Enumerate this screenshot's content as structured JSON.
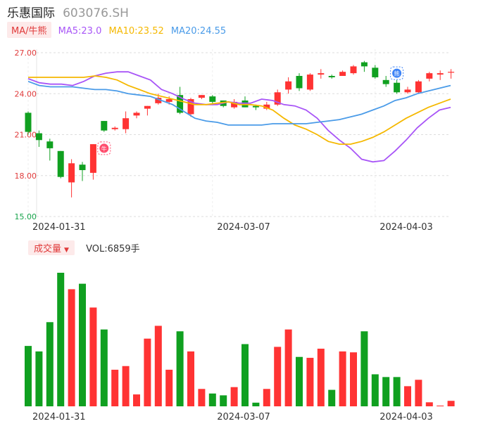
{
  "header": {
    "name": "乐惠国际",
    "code": "603076.SH"
  },
  "ma": {
    "tag": "MA/牛熊",
    "items": [
      {
        "label": "MA5:23.0",
        "color": "#a855f7"
      },
      {
        "label": "MA10:23.52",
        "color": "#f5b800"
      },
      {
        "label": "MA20:24.55",
        "color": "#4a9be8"
      }
    ]
  },
  "volume": {
    "tag": "成交量",
    "label": "VOL:6859手"
  },
  "colors": {
    "up": "#ff3333",
    "down": "#10a020",
    "ma5": "#a855f7",
    "ma10": "#f5b800",
    "ma20": "#4a9be8"
  },
  "icons": {
    "bull": "牛",
    "bear": "熊"
  },
  "chart_data": {
    "type": "candlestick",
    "ylim": [
      15,
      27
    ],
    "y_ticks": [
      "27.00",
      "24.00",
      "21.00",
      "18.00",
      "15.00"
    ],
    "x_tick_labels": [
      {
        "index": 0,
        "label": "2024-01-31"
      },
      {
        "index": 17,
        "label": "2024-03-07"
      },
      {
        "index": 32,
        "label": "2024-04-03"
      }
    ],
    "candles": [
      {
        "o": 22.6,
        "c": 21.2,
        "h": 22.7,
        "l": 21.0,
        "v": 330
      },
      {
        "o": 21.1,
        "c": 20.6,
        "h": 21.3,
        "l": 20.1,
        "v": 300
      },
      {
        "o": 20.5,
        "c": 20.0,
        "h": 20.7,
        "l": 19.1,
        "v": 460
      },
      {
        "o": 19.8,
        "c": 17.9,
        "h": 19.8,
        "l": 17.8,
        "v": 730
      },
      {
        "o": 17.5,
        "c": 18.9,
        "h": 19.2,
        "l": 16.4,
        "v": 640
      },
      {
        "o": 18.8,
        "c": 18.4,
        "h": 19.0,
        "l": 17.6,
        "v": 670
      },
      {
        "o": 18.2,
        "c": 20.3,
        "h": 20.3,
        "l": 17.7,
        "v": 540
      },
      {
        "o": 22.0,
        "c": 21.3,
        "h": 22.0,
        "l": 21.2,
        "v": 420
      },
      {
        "o": 21.4,
        "c": 21.5,
        "h": 21.6,
        "l": 21.3,
        "v": 200
      },
      {
        "o": 21.4,
        "c": 22.2,
        "h": 22.7,
        "l": 21.1,
        "v": 220
      },
      {
        "o": 22.4,
        "c": 22.6,
        "h": 22.7,
        "l": 22.2,
        "v": 65
      },
      {
        "o": 22.9,
        "c": 23.1,
        "h": 23.1,
        "l": 22.4,
        "v": 370
      },
      {
        "o": 23.3,
        "c": 23.7,
        "h": 24.0,
        "l": 23.2,
        "v": 440
      },
      {
        "o": 23.4,
        "c": 23.6,
        "h": 23.8,
        "l": 23.2,
        "v": 200
      },
      {
        "o": 23.9,
        "c": 22.6,
        "h": 24.5,
        "l": 22.5,
        "v": 410
      },
      {
        "o": 22.5,
        "c": 23.6,
        "h": 23.7,
        "l": 22.3,
        "v": 300
      },
      {
        "o": 23.7,
        "c": 23.9,
        "h": 23.9,
        "l": 23.6,
        "v": 95
      },
      {
        "o": 23.8,
        "c": 23.4,
        "h": 23.9,
        "l": 23.2,
        "v": 70
      },
      {
        "o": 23.5,
        "c": 23.1,
        "h": 23.5,
        "l": 23.0,
        "v": 60
      },
      {
        "o": 23.0,
        "c": 23.4,
        "h": 23.6,
        "l": 22.9,
        "v": 105
      },
      {
        "o": 23.5,
        "c": 23.0,
        "h": 23.8,
        "l": 23.0,
        "v": 340
      },
      {
        "o": 23.1,
        "c": 23.0,
        "h": 23.2,
        "l": 22.8,
        "v": 20
      },
      {
        "o": 22.9,
        "c": 23.2,
        "h": 23.4,
        "l": 22.8,
        "v": 95
      },
      {
        "o": 23.2,
        "c": 24.1,
        "h": 24.3,
        "l": 23.1,
        "v": 325
      },
      {
        "o": 24.3,
        "c": 24.9,
        "h": 25.2,
        "l": 24.0,
        "v": 420
      },
      {
        "o": 25.3,
        "c": 24.4,
        "h": 25.5,
        "l": 24.2,
        "v": 270
      },
      {
        "o": 24.3,
        "c": 25.4,
        "h": 25.5,
        "l": 24.2,
        "v": 265
      },
      {
        "o": 25.4,
        "c": 25.5,
        "h": 25.8,
        "l": 25.1,
        "v": 315
      },
      {
        "o": 25.3,
        "c": 25.2,
        "h": 25.4,
        "l": 25.1,
        "v": 90
      },
      {
        "o": 25.3,
        "c": 25.6,
        "h": 25.7,
        "l": 25.3,
        "v": 300
      },
      {
        "o": 25.5,
        "c": 26.0,
        "h": 26.1,
        "l": 25.4,
        "v": 295
      },
      {
        "o": 26.3,
        "c": 26.0,
        "h": 26.4,
        "l": 25.6,
        "v": 410
      },
      {
        "o": 25.9,
        "c": 25.2,
        "h": 26.1,
        "l": 25.1,
        "v": 175
      },
      {
        "o": 25.0,
        "c": 24.7,
        "h": 25.3,
        "l": 24.5,
        "v": 160
      },
      {
        "o": 24.8,
        "c": 24.1,
        "h": 25.0,
        "l": 24.0,
        "v": 160
      },
      {
        "o": 24.1,
        "c": 24.3,
        "h": 24.5,
        "l": 24.0,
        "v": 110
      },
      {
        "o": 24.1,
        "c": 24.9,
        "h": 25.0,
        "l": 24.0,
        "v": 145
      },
      {
        "o": 25.1,
        "c": 25.5,
        "h": 25.6,
        "l": 24.9,
        "v": 22
      },
      {
        "o": 25.4,
        "c": 25.5,
        "h": 25.7,
        "l": 25.0,
        "v": 4
      },
      {
        "o": 25.6,
        "c": 25.6,
        "h": 25.8,
        "l": 25.1,
        "v": 30
      }
    ],
    "ma5": [
      25.1,
      24.8,
      24.7,
      24.7,
      24.6,
      24.9,
      25.3,
      25.5,
      25.6,
      25.6,
      25.3,
      25.0,
      24.3,
      24.0,
      23.6,
      23.3,
      23.2,
      23.2,
      23.4,
      23.3,
      23.3,
      23.6,
      23.5,
      23.2,
      23.1,
      22.8,
      22.2,
      21.3,
      20.6,
      20.0,
      19.2,
      19.0,
      19.1,
      19.8,
      20.6,
      21.5,
      22.2,
      22.8,
      23.0
    ],
    "ma10": [
      25.2,
      25.2,
      25.2,
      25.2,
      25.2,
      25.2,
      25.3,
      25.2,
      25.0,
      24.6,
      24.3,
      24.0,
      23.8,
      23.6,
      23.4,
      23.2,
      23.2,
      23.3,
      23.4,
      23.2,
      23.2,
      23.1,
      22.8,
      22.2,
      21.7,
      21.4,
      21.0,
      20.5,
      20.3,
      20.3,
      20.5,
      20.8,
      21.2,
      21.7,
      22.2,
      22.6,
      23.0,
      23.3,
      23.6
    ],
    "ma20": [
      24.9,
      24.6,
      24.5,
      24.5,
      24.5,
      24.4,
      24.3,
      24.3,
      24.2,
      24.0,
      23.9,
      23.8,
      23.5,
      23.2,
      22.7,
      22.2,
      22.0,
      21.9,
      21.7,
      21.7,
      21.7,
      21.7,
      21.8,
      21.8,
      21.8,
      21.8,
      21.9,
      22.0,
      22.1,
      22.3,
      22.5,
      22.8,
      23.1,
      23.5,
      23.7,
      24.0,
      24.2,
      24.4,
      24.6
    ],
    "signals": [
      {
        "index": 7,
        "type": "bull",
        "price": 20.0
      },
      {
        "index": 34,
        "type": "bear",
        "price": 25.5
      }
    ]
  }
}
